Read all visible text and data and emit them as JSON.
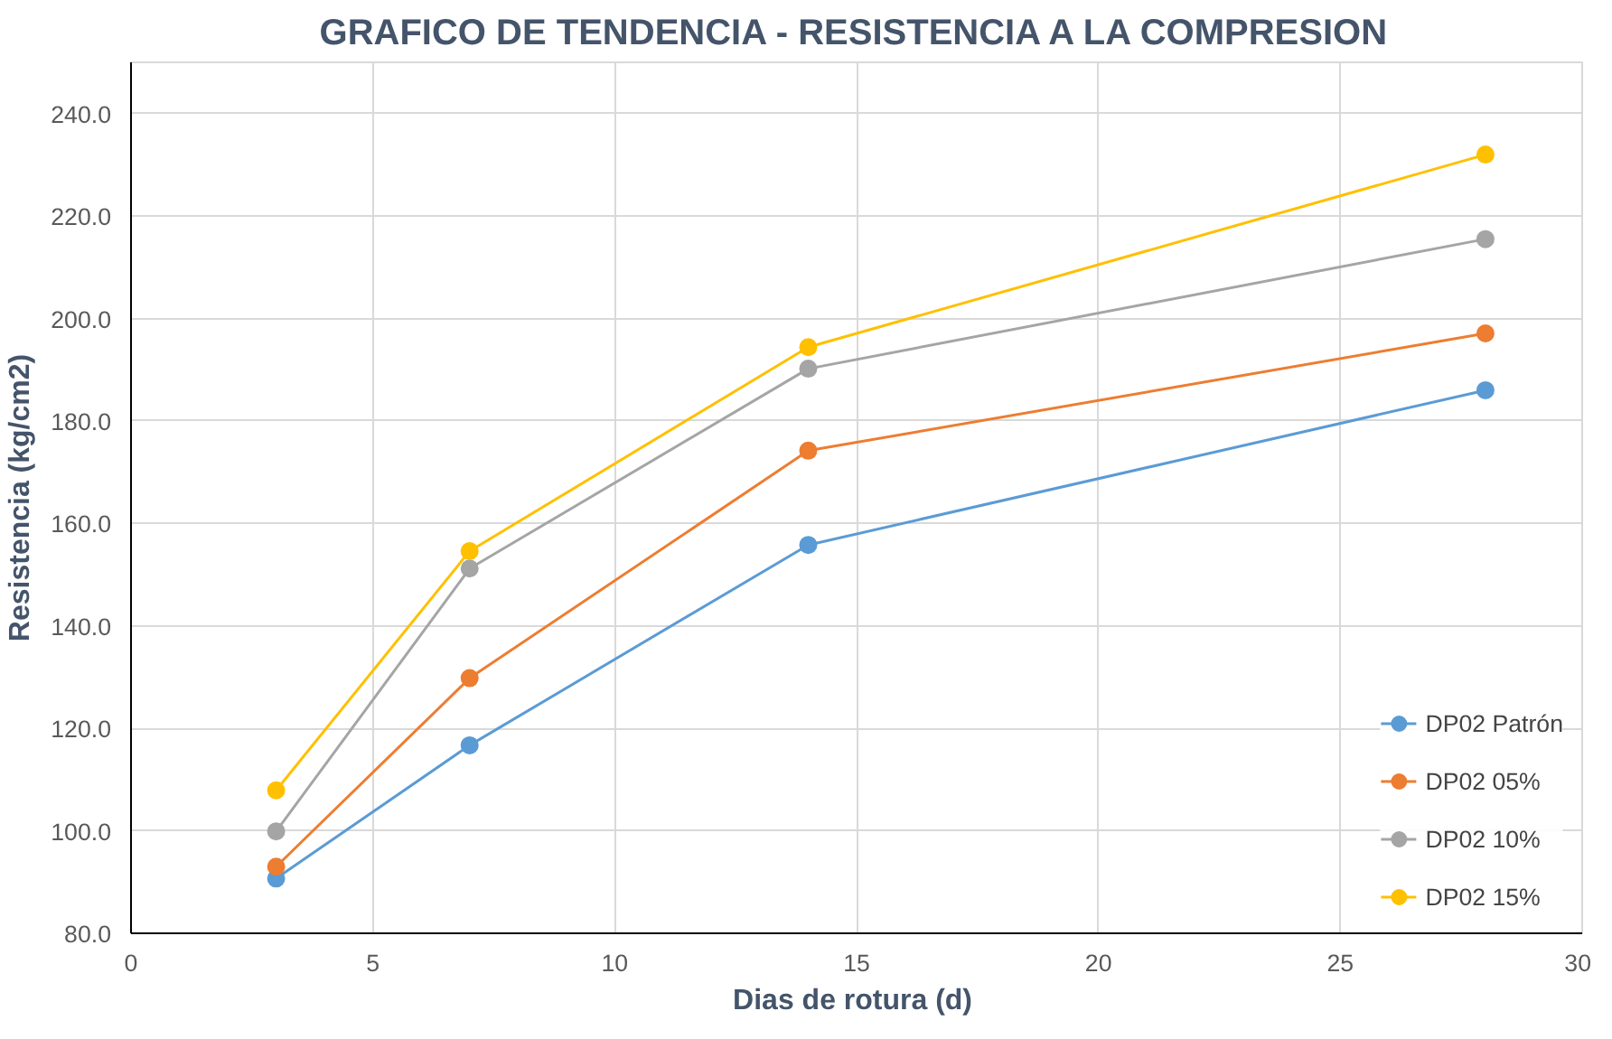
{
  "chart_data": {
    "type": "line",
    "title": "GRAFICO DE TENDENCIA - RESISTENCIA A LA COMPRESION",
    "xlabel": "Dias de rotura  (d)",
    "ylabel": "Resistencia (kg/cm2)",
    "x": [
      3,
      7,
      14,
      28
    ],
    "series": [
      {
        "name": "DP02 Patrón",
        "color": "#5b9bd5",
        "values": [
          90.7,
          116.7,
          155.8,
          186.0
        ]
      },
      {
        "name": "DP02 05%",
        "color": "#ed7d31",
        "values": [
          93.0,
          129.8,
          174.2,
          197.1
        ]
      },
      {
        "name": "DP02 10%",
        "color": "#a5a5a5",
        "values": [
          99.9,
          151.2,
          190.2,
          215.5
        ]
      },
      {
        "name": "DP02 15%",
        "color": "#ffc000",
        "values": [
          107.9,
          154.6,
          194.4,
          232.0
        ]
      }
    ],
    "xlim": [
      0,
      30
    ],
    "xticks": [
      0,
      5,
      10,
      15,
      20,
      25,
      30
    ],
    "ylim": [
      80,
      250
    ],
    "yticks": [
      {
        "value": 80,
        "label": "80.0"
      },
      {
        "value": 100,
        "label": "100.0"
      },
      {
        "value": 120,
        "label": "120.0"
      },
      {
        "value": 140,
        "label": "140.0"
      },
      {
        "value": 160,
        "label": "160.0"
      },
      {
        "value": 180,
        "label": "180.0"
      },
      {
        "value": 200,
        "label": "200.0"
      },
      {
        "value": 220,
        "label": "220.0"
      },
      {
        "value": 240,
        "label": "240.0"
      }
    ],
    "grid": true,
    "legend": "bottom right",
    "marker": "circle",
    "line_style": "solid"
  }
}
